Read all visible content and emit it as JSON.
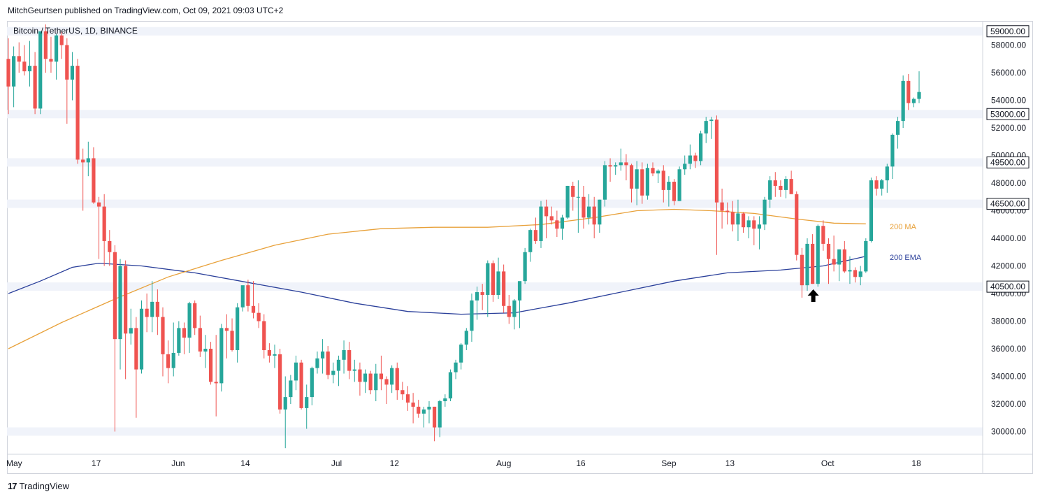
{
  "header": {
    "publisher": "MitchGeurtsen published on TradingView.com, Oct 09, 2021 09:03 UTC+2"
  },
  "footer": {
    "logo_text": "TradingView",
    "logo_mark": "17"
  },
  "chart_data": {
    "type": "candlestick",
    "title": "Bitcoin / TetherUS, 1D, BINANCE",
    "ylim": [
      28800,
      60000
    ],
    "y_ticks": [
      30000,
      32000,
      34000,
      36000,
      38000,
      40000,
      42000,
      44000,
      46000,
      48000,
      50000,
      52000,
      54000,
      56000,
      58000
    ],
    "y_tick_labels": [
      "30000.00",
      "32000.00",
      "34000.00",
      "36000.00",
      "38000.00",
      "40000.00",
      "42000.00",
      "44000.00",
      "46000.00",
      "48000.00",
      "50000.00",
      "52000.00",
      "54000.00",
      "56000.00",
      "58000.00"
    ],
    "x_labels": [
      {
        "label": "May",
        "day": 0
      },
      {
        "label": "17",
        "day": 16
      },
      {
        "label": "Jun",
        "day": 31
      },
      {
        "label": "14",
        "day": 44
      },
      {
        "label": "Jul",
        "day": 61
      },
      {
        "label": "12",
        "day": 72
      },
      {
        "label": "Aug",
        "day": 92
      },
      {
        "label": "16",
        "day": 107
      },
      {
        "label": "Sep",
        "day": 123
      },
      {
        "label": "13",
        "day": 135
      },
      {
        "label": "Oct",
        "day": 153
      },
      {
        "label": "18",
        "day": 170
      }
    ],
    "horizontal_levels": [
      {
        "value": 59000,
        "label": "59000.00"
      },
      {
        "value": 53000,
        "label": "53000.00"
      },
      {
        "value": 49500,
        "label": "49500.00"
      },
      {
        "value": 46500,
        "label": "46500.00"
      },
      {
        "value": 40500,
        "label": "40500.00"
      },
      {
        "value": 30000,
        "label": ""
      }
    ],
    "ma_label": "200 MA",
    "ema_label": "200 EMA",
    "colors": {
      "up": "#26a69a",
      "down": "#ef5350",
      "ma": "#e8a13a",
      "ema": "#2a3f9a",
      "band": "#f0f3fa",
      "grid_text": "#131722",
      "arrow": "#000000"
    },
    "arrow_day": 151,
    "arrow_value": 40000,
    "ma_points": [
      {
        "day": 0,
        "value": 36000
      },
      {
        "day": 10,
        "value": 37900
      },
      {
        "day": 20,
        "value": 39600
      },
      {
        "day": 30,
        "value": 41200
      },
      {
        "day": 40,
        "value": 42400
      },
      {
        "day": 50,
        "value": 43500
      },
      {
        "day": 60,
        "value": 44300
      },
      {
        "day": 70,
        "value": 44700
      },
      {
        "day": 80,
        "value": 44800
      },
      {
        "day": 90,
        "value": 44800
      },
      {
        "day": 100,
        "value": 45000
      },
      {
        "day": 110,
        "value": 45500
      },
      {
        "day": 118,
        "value": 46000
      },
      {
        "day": 125,
        "value": 46100
      },
      {
        "day": 132,
        "value": 46000
      },
      {
        "day": 140,
        "value": 45800
      },
      {
        "day": 148,
        "value": 45400
      },
      {
        "day": 155,
        "value": 45100
      },
      {
        "day": 161,
        "value": 45050
      }
    ],
    "ema_points": [
      {
        "day": 0,
        "value": 40000
      },
      {
        "day": 6,
        "value": 40900
      },
      {
        "day": 12,
        "value": 41900
      },
      {
        "day": 17,
        "value": 42200
      },
      {
        "day": 25,
        "value": 42000
      },
      {
        "day": 35,
        "value": 41500
      },
      {
        "day": 45,
        "value": 40800
      },
      {
        "day": 55,
        "value": 40100
      },
      {
        "day": 65,
        "value": 39300
      },
      {
        "day": 75,
        "value": 38700
      },
      {
        "day": 85,
        "value": 38500
      },
      {
        "day": 95,
        "value": 38600
      },
      {
        "day": 105,
        "value": 39300
      },
      {
        "day": 115,
        "value": 40100
      },
      {
        "day": 125,
        "value": 40900
      },
      {
        "day": 135,
        "value": 41500
      },
      {
        "day": 145,
        "value": 41700
      },
      {
        "day": 153,
        "value": 42000
      },
      {
        "day": 161,
        "value": 42700
      }
    ],
    "candles": [
      [
        0,
        57000,
        58500,
        53000,
        55000
      ],
      [
        1,
        55000,
        57900,
        53500,
        57200
      ],
      [
        2,
        57200,
        58200,
        56000,
        56800
      ],
      [
        3,
        56800,
        58000,
        55800,
        56100
      ],
      [
        4,
        56100,
        58300,
        55000,
        56500
      ],
      [
        5,
        56500,
        57500,
        53000,
        53400
      ],
      [
        6,
        53400,
        59000,
        53000,
        59000
      ],
      [
        7,
        59000,
        59500,
        56000,
        57000
      ],
      [
        8,
        57000,
        58600,
        56000,
        56800
      ],
      [
        9,
        56800,
        58800,
        55500,
        58700
      ],
      [
        10,
        58700,
        59000,
        57000,
        58000
      ],
      [
        11,
        58000,
        58500,
        52300,
        55500
      ],
      [
        12,
        55500,
        57500,
        54000,
        56500
      ],
      [
        13,
        56500,
        57000,
        49400,
        49700
      ],
      [
        14,
        49700,
        50500,
        46000,
        49500
      ],
      [
        15,
        49500,
        51000,
        48500,
        49800
      ],
      [
        16,
        49800,
        50600,
        46500,
        46600
      ],
      [
        17,
        46600,
        47000,
        42500,
        46300
      ],
      [
        18,
        46300,
        47200,
        42000,
        43800
      ],
      [
        19,
        43800,
        44600,
        42000,
        43000
      ],
      [
        20,
        43000,
        43500,
        30000,
        36700
      ],
      [
        21,
        36700,
        42500,
        34500,
        42000
      ],
      [
        22,
        42000,
        42400,
        33800,
        37100
      ],
      [
        23,
        37100,
        38900,
        36300,
        37500
      ],
      [
        24,
        37500,
        38300,
        31000,
        34500
      ],
      [
        25,
        34500,
        39500,
        34200,
        38900
      ],
      [
        26,
        38900,
        40000,
        37200,
        38300
      ],
      [
        27,
        38300,
        40900,
        37200,
        39400
      ],
      [
        28,
        39400,
        40300,
        37000,
        38300
      ],
      [
        29,
        38300,
        39000,
        34000,
        35600
      ],
      [
        30,
        35600,
        36600,
        33500,
        34600
      ],
      [
        31,
        34600,
        37900,
        34000,
        35700
      ],
      [
        32,
        35700,
        38000,
        35500,
        37500
      ],
      [
        33,
        37500,
        37900,
        35600,
        36800
      ],
      [
        34,
        36800,
        39400,
        35700,
        39300
      ],
      [
        35,
        39300,
        39500,
        37000,
        37500
      ],
      [
        36,
        37500,
        38400,
        35400,
        35800
      ],
      [
        37,
        35800,
        37000,
        34600,
        36000
      ],
      [
        38,
        36000,
        36500,
        33400,
        33600
      ],
      [
        39,
        33600,
        37000,
        31100,
        33500
      ],
      [
        40,
        33500,
        37800,
        32900,
        37500
      ],
      [
        41,
        37500,
        38500,
        35300,
        37300
      ],
      [
        42,
        37300,
        38200,
        35800,
        35900
      ],
      [
        43,
        35900,
        39300,
        35000,
        39000
      ],
      [
        44,
        39000,
        40500,
        38700,
        40600
      ],
      [
        45,
        40600,
        41000,
        38700,
        39100
      ],
      [
        46,
        39100,
        40900,
        38200,
        38600
      ],
      [
        47,
        38600,
        39300,
        37500,
        38000
      ],
      [
        48,
        38000,
        38500,
        35300,
        35900
      ],
      [
        49,
        35900,
        36400,
        35000,
        35500
      ],
      [
        50,
        35500,
        36300,
        34600,
        35600
      ],
      [
        51,
        35600,
        36000,
        31300,
        31600
      ],
      [
        52,
        31600,
        34000,
        28800,
        32500
      ],
      [
        53,
        32500,
        34100,
        32000,
        33700
      ],
      [
        54,
        33700,
        35500,
        33000,
        35000
      ],
      [
        55,
        35000,
        35200,
        31600,
        31700
      ],
      [
        56,
        31700,
        33400,
        30200,
        32500
      ],
      [
        57,
        32500,
        34700,
        31900,
        34600
      ],
      [
        58,
        34600,
        35800,
        34200,
        35300
      ],
      [
        59,
        35300,
        36700,
        34200,
        35800
      ],
      [
        60,
        35800,
        36200,
        33800,
        34100
      ],
      [
        61,
        34100,
        35000,
        33500,
        34400
      ],
      [
        62,
        34400,
        35500,
        33300,
        35200
      ],
      [
        63,
        35200,
        36600,
        34200,
        35900
      ],
      [
        64,
        35900,
        36500,
        33800,
        34400
      ],
      [
        65,
        34400,
        35200,
        33600,
        34500
      ],
      [
        66,
        34500,
        35000,
        32600,
        33600
      ],
      [
        67,
        33600,
        34500,
        32800,
        34200
      ],
      [
        68,
        34200,
        34400,
        32700,
        33000
      ],
      [
        69,
        33000,
        34900,
        32200,
        34200
      ],
      [
        70,
        34200,
        35500,
        33000,
        33800
      ],
      [
        71,
        33800,
        34000,
        32000,
        33400
      ],
      [
        72,
        33400,
        34800,
        32800,
        34600
      ],
      [
        73,
        34600,
        35000,
        32300,
        33000
      ],
      [
        74,
        33000,
        33600,
        32300,
        32700
      ],
      [
        75,
        32700,
        33300,
        31500,
        32100
      ],
      [
        76,
        32100,
        32800,
        30600,
        31800
      ],
      [
        77,
        31800,
        32300,
        31000,
        31300
      ],
      [
        78,
        31300,
        31800,
        30300,
        31600
      ],
      [
        79,
        31600,
        32200,
        30600,
        31800
      ],
      [
        80,
        31800,
        31800,
        29300,
        30300
      ],
      [
        81,
        30300,
        32300,
        29600,
        32200
      ],
      [
        82,
        32200,
        32700,
        31800,
        32400
      ],
      [
        83,
        32400,
        34500,
        32200,
        34300
      ],
      [
        84,
        34300,
        35200,
        33800,
        35000
      ],
      [
        85,
        35000,
        36400,
        34500,
        36300
      ],
      [
        86,
        36300,
        37500,
        35900,
        37300
      ],
      [
        87,
        37300,
        40000,
        36500,
        39500
      ],
      [
        88,
        39500,
        40500,
        38100,
        40100
      ],
      [
        89,
        40100,
        40700,
        38800,
        39900
      ],
      [
        90,
        39900,
        42400,
        38300,
        42200
      ],
      [
        91,
        42200,
        42400,
        39400,
        39900
      ],
      [
        92,
        39900,
        42600,
        39600,
        41600
      ],
      [
        93,
        41600,
        42100,
        38600,
        39100
      ],
      [
        94,
        39100,
        39900,
        37800,
        38300
      ],
      [
        95,
        38300,
        39600,
        37400,
        39500
      ],
      [
        96,
        39500,
        40800,
        37500,
        40900
      ],
      [
        97,
        40900,
        43300,
        40700,
        43000
      ],
      [
        98,
        43000,
        44700,
        42300,
        44600
      ],
      [
        99,
        44600,
        45500,
        43600,
        43800
      ],
      [
        100,
        43800,
        46700,
        43300,
        46300
      ],
      [
        101,
        46300,
        46800,
        44000,
        45600
      ],
      [
        102,
        45600,
        46300,
        45000,
        45300
      ],
      [
        103,
        45300,
        46000,
        44100,
        44700
      ],
      [
        104,
        44700,
        45700,
        43900,
        45500
      ],
      [
        105,
        45500,
        47800,
        45400,
        47800
      ],
      [
        106,
        47800,
        48100,
        46000,
        47000
      ],
      [
        107,
        47000,
        48200,
        44400,
        47000
      ],
      [
        108,
        47000,
        47800,
        44700,
        45500
      ],
      [
        109,
        45500,
        47200,
        45000,
        46300
      ],
      [
        110,
        46300,
        47000,
        44000,
        45000
      ],
      [
        111,
        45000,
        46800,
        44400,
        46800
      ],
      [
        112,
        46800,
        49600,
        46300,
        49300
      ],
      [
        113,
        49300,
        49800,
        48100,
        49200
      ],
      [
        114,
        49200,
        49500,
        48600,
        49300
      ],
      [
        115,
        49300,
        50500,
        48900,
        49500
      ],
      [
        116,
        49500,
        50100,
        48200,
        49300
      ],
      [
        117,
        49300,
        49400,
        46600,
        47600
      ],
      [
        118,
        47600,
        49600,
        46400,
        49000
      ],
      [
        119,
        49000,
        49500,
        46500,
        47100
      ],
      [
        120,
        47100,
        49400,
        46800,
        49100
      ],
      [
        121,
        49100,
        49500,
        48500,
        48700
      ],
      [
        122,
        48700,
        49000,
        48000,
        48900
      ],
      [
        123,
        48900,
        49300,
        46600,
        47500
      ],
      [
        124,
        47500,
        48500,
        46300,
        48100
      ],
      [
        125,
        48100,
        48300,
        46400,
        46700
      ],
      [
        126,
        46700,
        49200,
        46700,
        49000
      ],
      [
        127,
        49000,
        50000,
        48600,
        49400
      ],
      [
        128,
        49400,
        50800,
        49000,
        50000
      ],
      [
        129,
        50000,
        50200,
        49100,
        49600
      ],
      [
        130,
        49600,
        51800,
        49300,
        51600
      ],
      [
        131,
        51600,
        52800,
        50900,
        52500
      ],
      [
        132,
        52500,
        52800,
        51200,
        52600
      ],
      [
        133,
        52600,
        52900,
        42800,
        46600
      ],
      [
        134,
        46600,
        47600,
        44700,
        46000
      ],
      [
        135,
        46000,
        46600,
        45000,
        45900
      ],
      [
        136,
        45900,
        46700,
        44500,
        45000
      ],
      [
        137,
        45000,
        46800,
        43800,
        45800
      ],
      [
        138,
        45800,
        45900,
        44400,
        44800
      ],
      [
        139,
        44800,
        45600,
        44000,
        45300
      ],
      [
        140,
        45300,
        45600,
        43500,
        44700
      ],
      [
        141,
        44700,
        45600,
        43200,
        45000
      ],
      [
        142,
        45000,
        47000,
        44600,
        46800
      ],
      [
        143,
        46800,
        48500,
        46200,
        48200
      ],
      [
        144,
        48200,
        48800,
        47000,
        47800
      ],
      [
        145,
        47800,
        48200,
        47000,
        47500
      ],
      [
        146,
        47500,
        48500,
        46900,
        48300
      ],
      [
        147,
        48300,
        48900,
        47300,
        47200
      ],
      [
        148,
        47200,
        47400,
        42400,
        42800
      ],
      [
        149,
        42800,
        43300,
        39700,
        40600
      ],
      [
        150,
        40600,
        44000,
        40200,
        43600
      ],
      [
        151,
        43600,
        44300,
        40700,
        40700
      ],
      [
        152,
        40700,
        45000,
        40500,
        44900
      ],
      [
        153,
        44900,
        45300,
        43100,
        43600
      ],
      [
        154,
        43600,
        44000,
        40700,
        42500
      ],
      [
        155,
        42500,
        44200,
        41600,
        42100
      ],
      [
        156,
        42100,
        43200,
        40900,
        43200
      ],
      [
        157,
        43200,
        43800,
        41500,
        41600
      ],
      [
        158,
        41600,
        42700,
        40700,
        41700
      ],
      [
        159,
        41700,
        41900,
        40800,
        41200
      ],
      [
        160,
        41200,
        42000,
        40600,
        41600
      ],
      [
        161,
        41600,
        44000,
        41500,
        43800
      ],
      [
        162,
        43800,
        48400,
        43700,
        48200
      ],
      [
        163,
        48200,
        48500,
        47100,
        47600
      ],
      [
        164,
        47600,
        48300,
        47100,
        48200
      ],
      [
        165,
        48200,
        49400,
        47300,
        49200
      ],
      [
        166,
        49200,
        51600,
        48300,
        51500
      ],
      [
        167,
        51500,
        52800,
        50500,
        52500
      ],
      [
        168,
        52500,
        55800,
        52000,
        55400
      ],
      [
        169,
        55400,
        55900,
        53300,
        53800
      ],
      [
        170,
        53800,
        54200,
        53500,
        54100
      ],
      [
        171,
        54100,
        56100,
        53800,
        54600
      ]
    ]
  }
}
